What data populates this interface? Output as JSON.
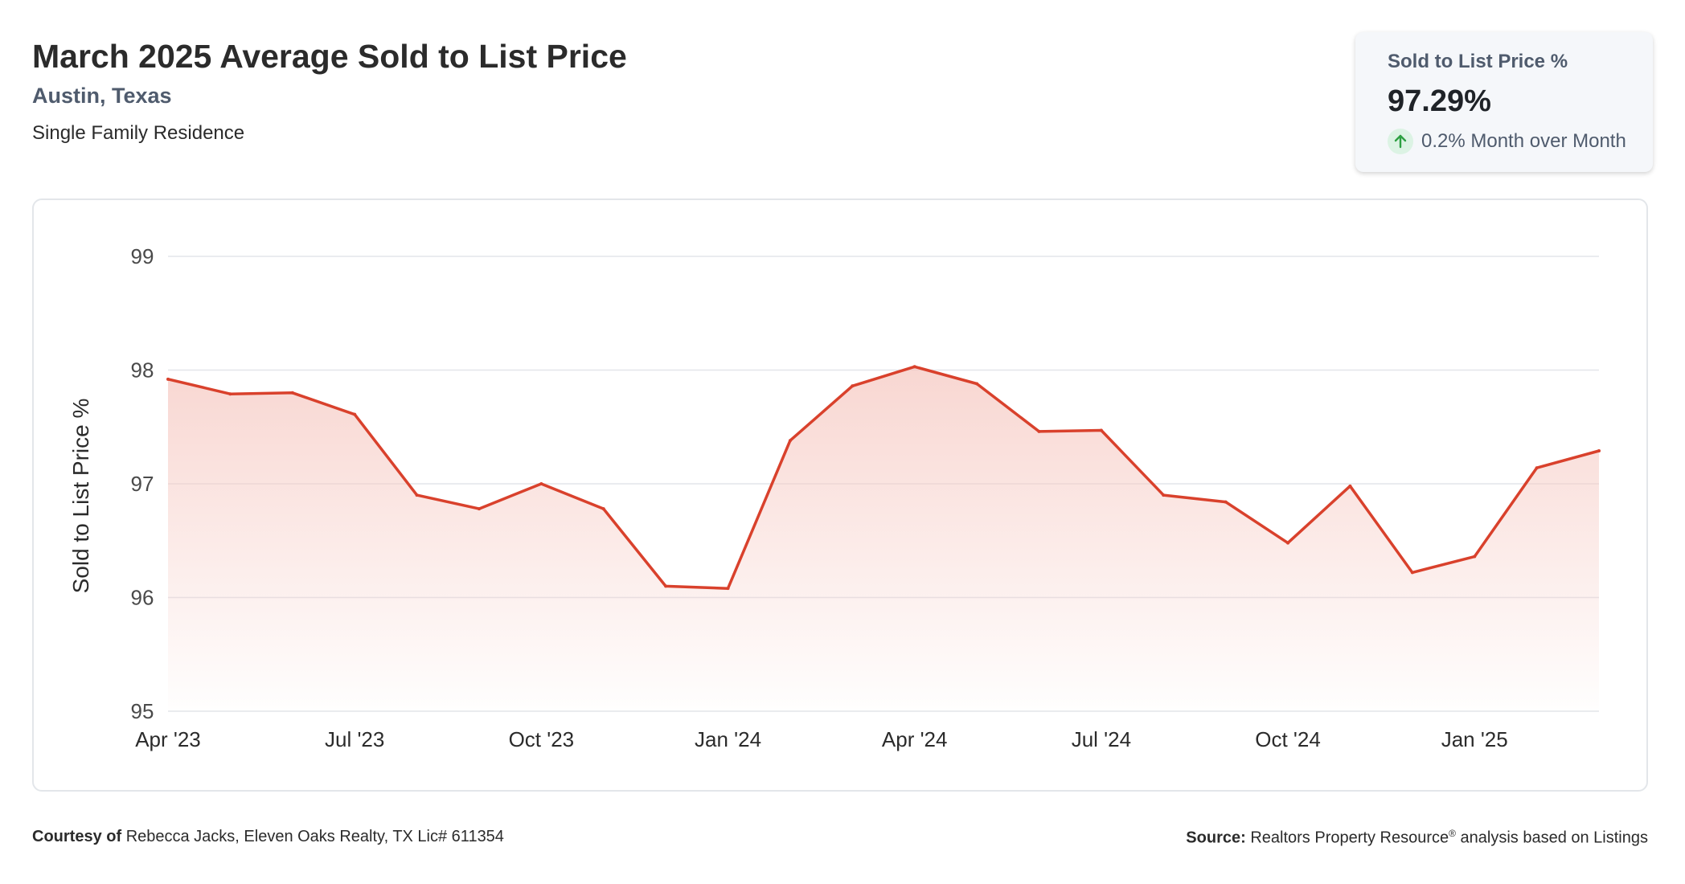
{
  "header": {
    "title": "March 2025 Average Sold to List Price",
    "location": "Austin, Texas",
    "property_type": "Single Family Residence"
  },
  "kpi": {
    "label": "Sold to List Price %",
    "value": "97.29%",
    "change_text": "0.2% Month over Month",
    "change_icon": "arrow-up-icon",
    "change_color": "#2ea043"
  },
  "colors": {
    "line": "#d9412c",
    "area_top": "#f6c9c2",
    "grid": "#e3e6ea",
    "axis_text": "#4a4a4a"
  },
  "chart_data": {
    "type": "area",
    "ylabel": "Sold to List Price %",
    "xlabel": "",
    "ylim": [
      95,
      99
    ],
    "yticks": [
      95,
      96,
      97,
      98,
      99
    ],
    "grid": true,
    "x": [
      "Apr '23",
      "May '23",
      "Jun '23",
      "Jul '23",
      "Aug '23",
      "Sep '23",
      "Oct '23",
      "Nov '23",
      "Dec '23",
      "Jan '24",
      "Feb '24",
      "Mar '24",
      "Apr '24",
      "May '24",
      "Jun '24",
      "Jul '24",
      "Aug '24",
      "Sep '24",
      "Oct '24",
      "Nov '24",
      "Dec '24",
      "Jan '25",
      "Feb '25",
      "Mar '25"
    ],
    "xtick_labels": [
      "Apr '23",
      "Jul '23",
      "Oct '23",
      "Jan '24",
      "Apr '24",
      "Jul '24",
      "Oct '24",
      "Jan '25"
    ],
    "series": [
      {
        "values": [
          97.92,
          97.79,
          97.8,
          97.61,
          96.9,
          96.78,
          97.0,
          96.78,
          96.1,
          96.08,
          97.38,
          97.86,
          98.03,
          97.88,
          97.46,
          97.47,
          96.9,
          96.84,
          96.48,
          96.98,
          96.22,
          96.36,
          97.14,
          97.29
        ]
      }
    ]
  },
  "footer": {
    "courtesy_label": "Courtesy of",
    "courtesy_text": "Rebecca Jacks, Eleven Oaks Realty, TX Lic# 611354",
    "source_label": "Source:",
    "source_name": "Realtors Property Resource",
    "source_mark": "®",
    "source_text": "analysis based on Listings"
  }
}
